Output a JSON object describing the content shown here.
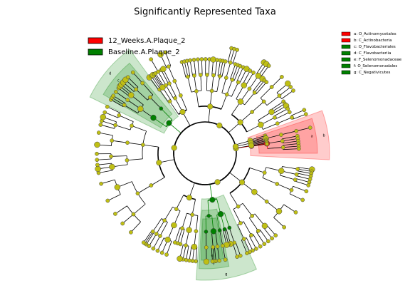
{
  "chart_data": {
    "type": "cladogram",
    "title": "Significantly Represented Taxa",
    "classes": [
      {
        "name": "12_Weeks.A.Plaque_2",
        "color": "#ff0000"
      },
      {
        "name": "Baseline.A.Plaque_2",
        "color": "#008000"
      }
    ],
    "taxa": [
      {
        "key": "a",
        "label": "a: O_Actinomycetales",
        "color": "#ff0000"
      },
      {
        "key": "b",
        "label": "b: C_Actinobacteria",
        "color": "#ff0000"
      },
      {
        "key": "c",
        "label": "c: O_Flavobacteriales",
        "color": "#008000"
      },
      {
        "key": "d",
        "label": "d: C_Flavobacteriia",
        "color": "#008000"
      },
      {
        "key": "e",
        "label": "e: F_Selenomonadaceae",
        "color": "#008000"
      },
      {
        "key": "f",
        "label": "f: O_Selenomonadales",
        "color": "#008000"
      },
      {
        "key": "g",
        "label": "g: C_Negativicutes",
        "color": "#008000"
      }
    ]
  }
}
